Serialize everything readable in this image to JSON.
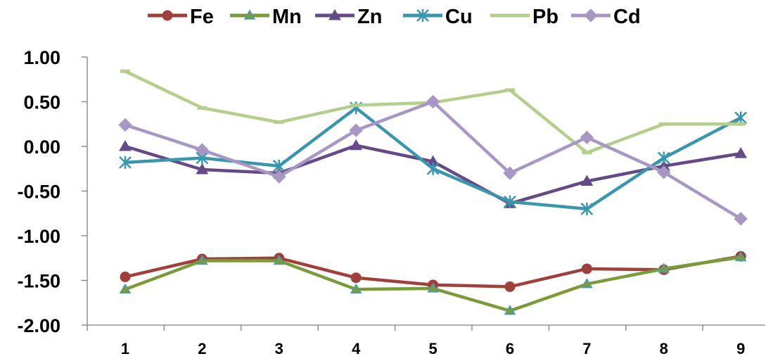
{
  "chart_data": {
    "type": "line",
    "categories": [
      "1",
      "2",
      "3",
      "4",
      "5",
      "6",
      "7",
      "8",
      "9"
    ],
    "ylim": [
      -2.0,
      1.0
    ],
    "yticks": [
      1.0,
      0.5,
      0.0,
      -0.5,
      -1.0,
      -1.5,
      -2.0
    ],
    "ytick_labels": [
      "1.00",
      "0.50",
      "0.00",
      "-0.50",
      "-1.00",
      "-1.50",
      "-2.00"
    ],
    "grid": false,
    "legend_position": "top",
    "series": [
      {
        "name": "Fe",
        "color": "#A0403C",
        "marker": "circle",
        "values": [
          -1.46,
          -1.26,
          -1.25,
          -1.47,
          -1.55,
          -1.57,
          -1.37,
          -1.38,
          -1.23
        ]
      },
      {
        "name": "Mn",
        "color": "#7A9A3B",
        "marker": "triangle-small",
        "values": [
          -1.6,
          -1.28,
          -1.28,
          -1.6,
          -1.59,
          -1.84,
          -1.54,
          -1.37,
          -1.24
        ]
      },
      {
        "name": "Zn",
        "color": "#654A87",
        "marker": "triangle",
        "values": [
          0.0,
          -0.26,
          -0.3,
          0.01,
          -0.17,
          -0.64,
          -0.39,
          -0.22,
          -0.08
        ]
      },
      {
        "name": "Cu",
        "color": "#3A96AD",
        "marker": "asterisk",
        "values": [
          -0.18,
          -0.13,
          -0.22,
          0.43,
          -0.25,
          -0.62,
          -0.7,
          -0.13,
          0.32
        ]
      },
      {
        "name": "Pb",
        "color": "#B4CF8C",
        "marker": "dash",
        "values": [
          0.84,
          0.43,
          0.27,
          0.46,
          0.49,
          0.63,
          -0.07,
          0.25,
          0.25
        ]
      },
      {
        "name": "Cd",
        "color": "#A897C4",
        "marker": "diamond",
        "values": [
          0.24,
          -0.04,
          -0.34,
          0.18,
          0.5,
          -0.3,
          0.1,
          -0.29,
          -0.81
        ]
      }
    ]
  }
}
